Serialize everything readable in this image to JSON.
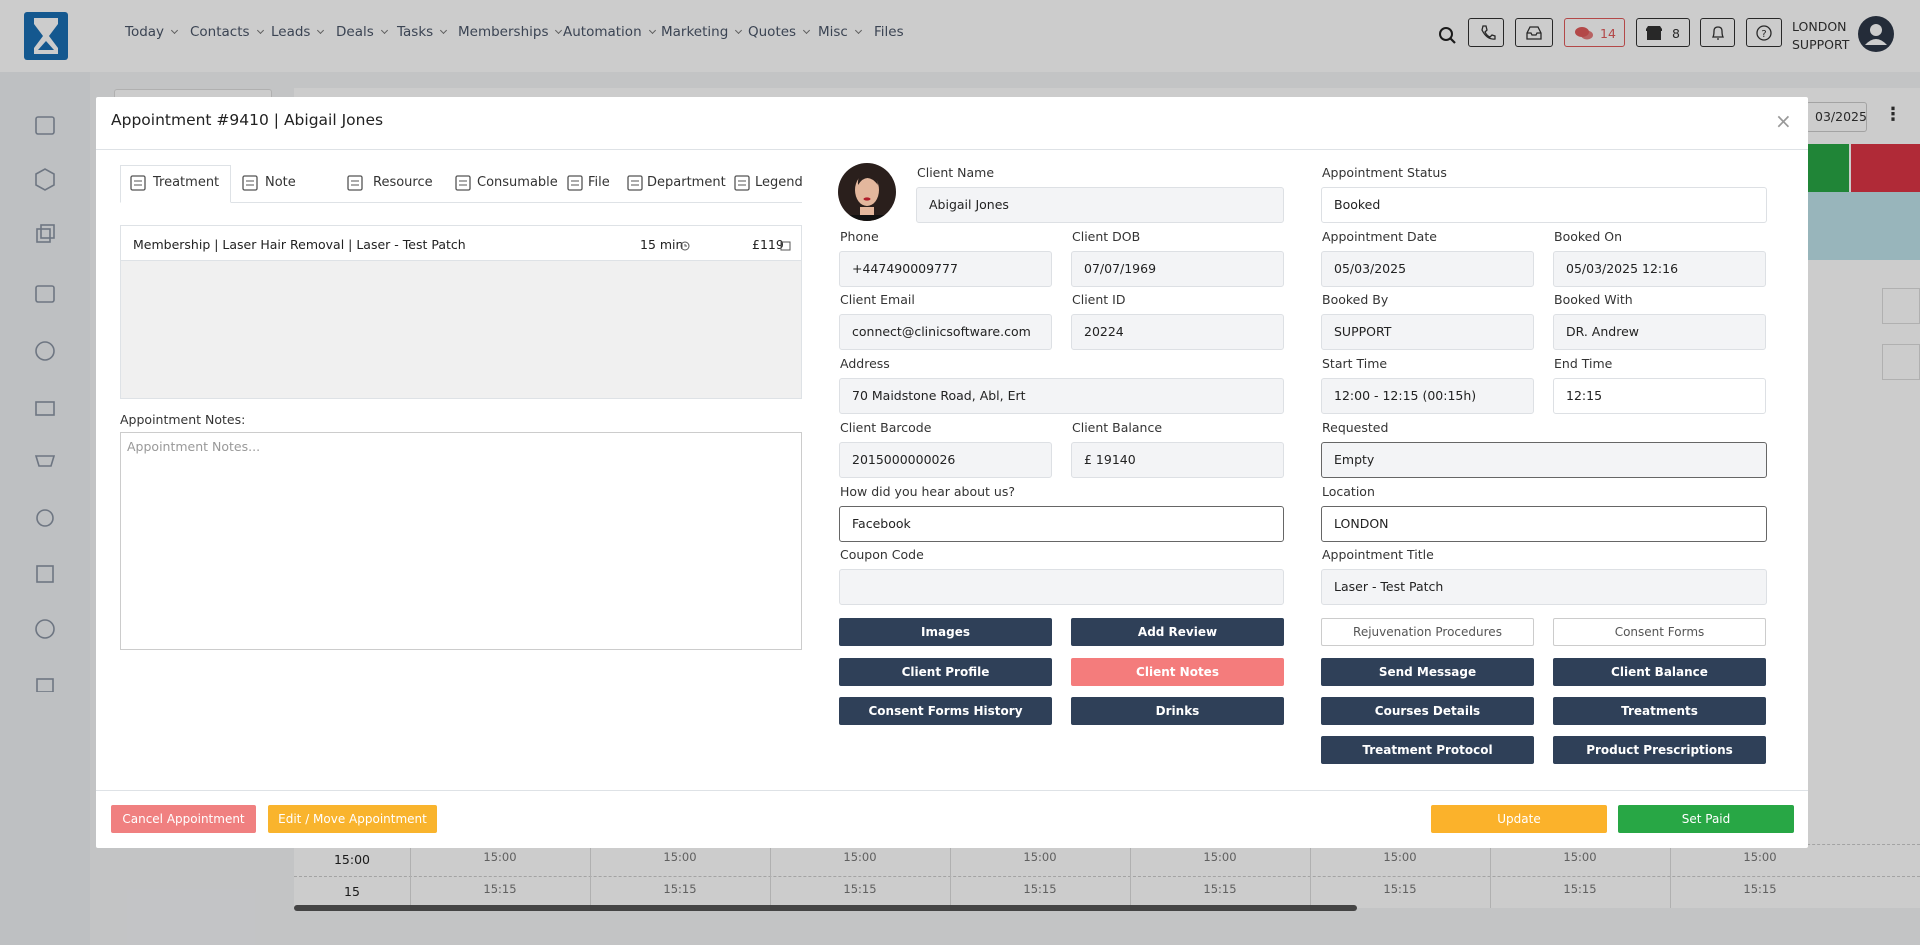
{
  "nav": {
    "menu": [
      "Today",
      "Contacts",
      "Leads",
      "Deals",
      "Tasks",
      "Memberships",
      "Automation",
      "Marketing",
      "Quotes",
      "Misc",
      "Files"
    ],
    "chat_count": "14",
    "store_count": "8",
    "user_location": "LONDON",
    "user_name": "SUPPORT"
  },
  "background": {
    "date": "03/2025",
    "rows": [
      {
        "time": "15:00",
        "slot": "15:00"
      },
      {
        "time": "15",
        "slot": "15:15"
      }
    ]
  },
  "modal": {
    "title": "Appointment #9410 | Abigail Jones",
    "tabs": [
      "Treatment",
      "Note",
      "Resource",
      "Consumable",
      "File",
      "Department",
      "Legend"
    ],
    "treatment": {
      "name": "Membership | Laser Hair Removal | Laser - Test Patch",
      "duration": "15 min",
      "price": "£119"
    },
    "notes_label": "Appointment Notes:",
    "notes_placeholder": "Appointment Notes...",
    "fields": [
      {
        "label": "Client Name",
        "value": "Abigail Jones"
      },
      {
        "label": "Phone",
        "value": "+447490009777"
      },
      {
        "label": "Client DOB",
        "value": "07/07/1969"
      },
      {
        "label": "Client Email",
        "value": "connect@clinicsoftware.com"
      },
      {
        "label": "Client ID",
        "value": "20224"
      },
      {
        "label": "Address",
        "value": "70  Maidstone Road, Abl, Ert"
      },
      {
        "label": "Client Barcode",
        "value": "2015000000026"
      },
      {
        "label": "Client Balance",
        "value": "£ 19140"
      },
      {
        "label": "How did you hear about us?",
        "value": "Facebook"
      },
      {
        "label": "Coupon Code"
      },
      {
        "label": "Appointment Status",
        "value": "Booked"
      },
      {
        "label": "Appointment Date",
        "value": "05/03/2025"
      },
      {
        "label": "Booked On",
        "value": "05/03/2025 12:16"
      },
      {
        "label": "Booked By",
        "value": "SUPPORT"
      },
      {
        "label": "Booked With",
        "value": "DR. Andrew"
      },
      {
        "label": "Start Time",
        "value": "12:00 - 12:15 (00:15h)"
      },
      {
        "label": "End Time",
        "value": "12:15"
      },
      {
        "label": "Requested",
        "value": "Empty"
      },
      {
        "label": "Location",
        "value": "LONDON"
      },
      {
        "label": "Appointment Title",
        "value": "Laser - Test Patch"
      }
    ],
    "buttons": [
      "Images",
      "Add Review",
      "Rejuvenation Procedures",
      "Consent Forms",
      "Client Profile",
      "Client Notes",
      "Send Message",
      "Client Balance",
      "Consent Forms History",
      "Drinks",
      "Courses Details",
      "Treatments",
      "Treatment Protocol",
      "Product Prescriptions"
    ],
    "footer": [
      "Cancel Appointment",
      "Edit / Move Appointment",
      "Update",
      "Set Paid"
    ]
  }
}
